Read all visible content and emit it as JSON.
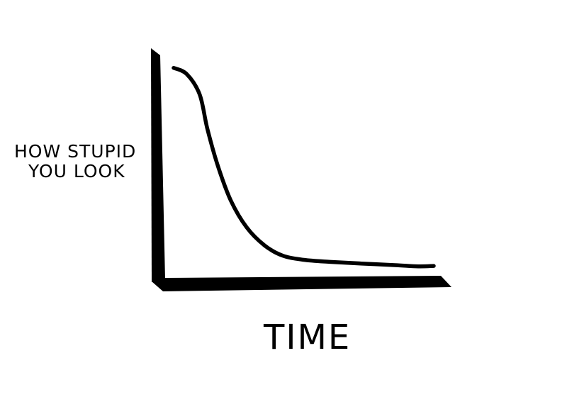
{
  "chart_data": {
    "type": "line",
    "title": "",
    "ylabel_lines": [
      "HOW STUPID",
      "YOU LOOK"
    ],
    "xlabel": "TIME",
    "x_ticks": [],
    "y_ticks": [],
    "grid": false,
    "legend": "none",
    "ylim": [
      0,
      1
    ],
    "xlim": [
      0,
      1
    ],
    "series": [
      {
        "color": "#000000",
        "x": [
          0.0,
          0.05,
          0.1,
          0.13,
          0.17,
          0.22,
          0.28,
          0.35,
          0.42,
          0.5,
          0.6,
          0.72,
          0.85,
          0.94,
          1.0
        ],
        "y": [
          0.98,
          0.95,
          0.85,
          0.68,
          0.5,
          0.33,
          0.2,
          0.11,
          0.06,
          0.04,
          0.03,
          0.022,
          0.014,
          0.008,
          0.01
        ]
      }
    ]
  },
  "colors": {
    "ink": "#000000",
    "background": "#ffffff"
  }
}
